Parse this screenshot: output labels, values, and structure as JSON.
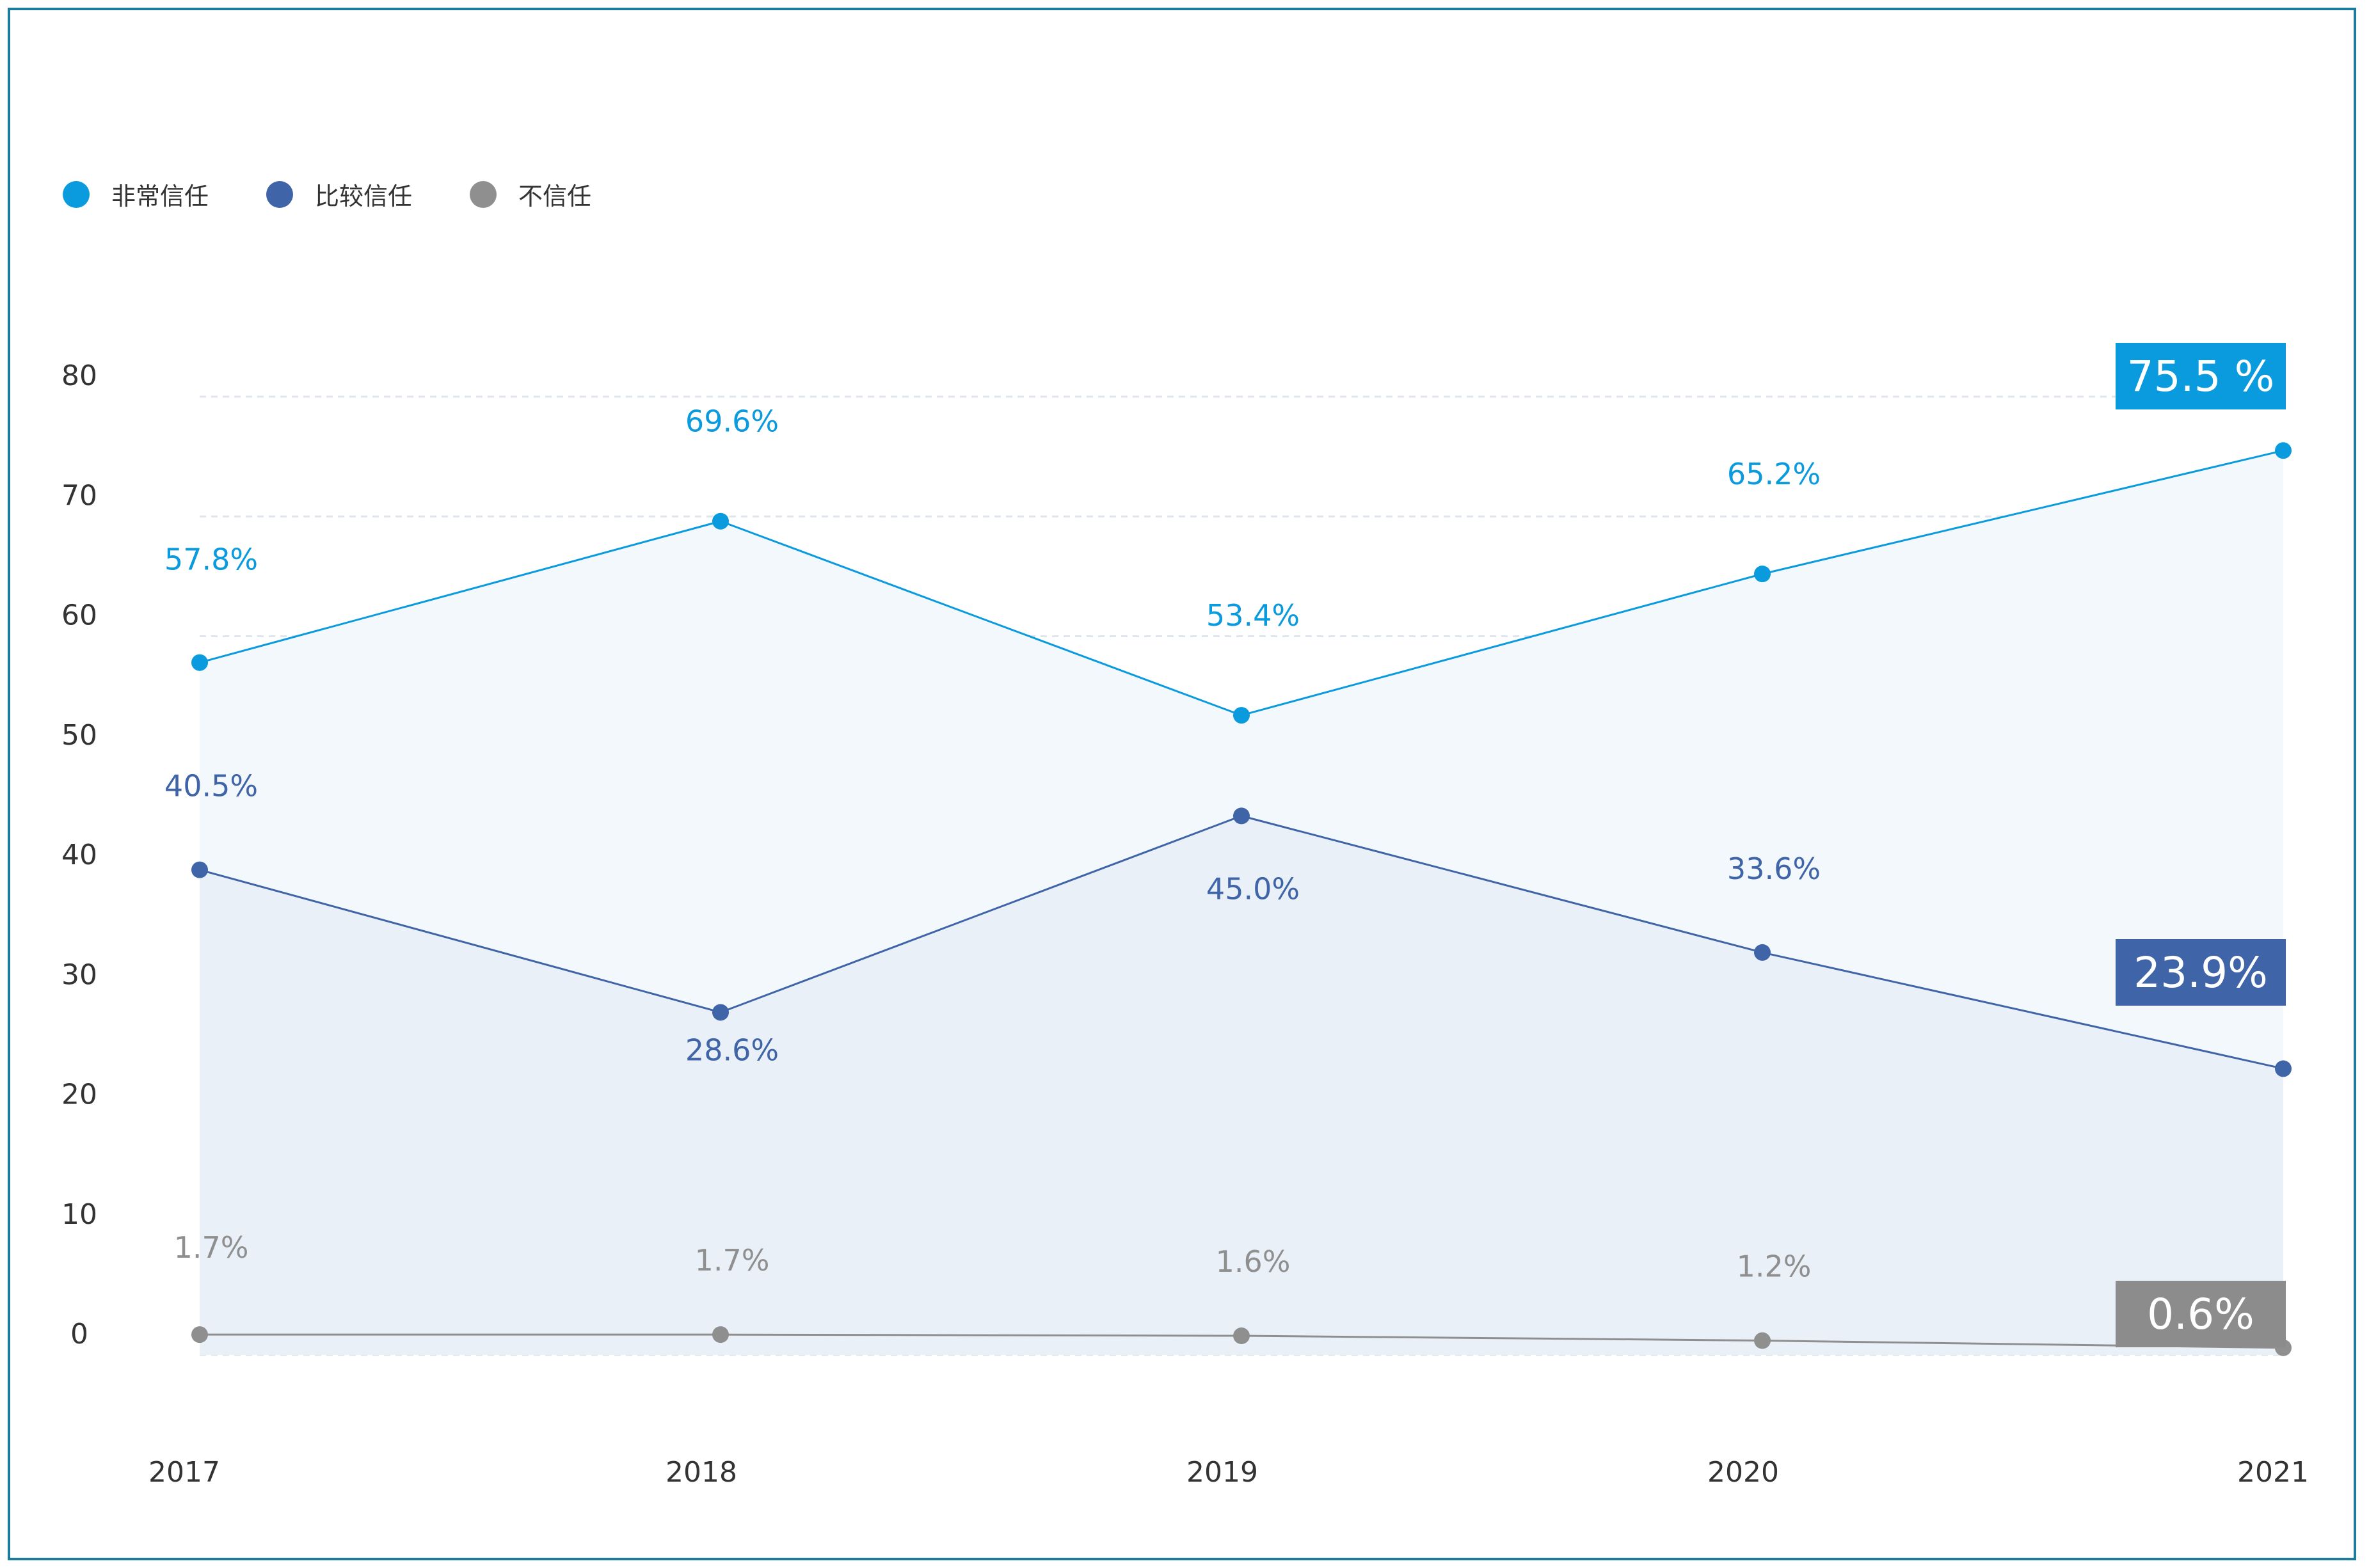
{
  "chart_data": {
    "type": "line",
    "categories": [
      "2017",
      "2018",
      "2019",
      "2020",
      "2021"
    ],
    "ylim": [
      0,
      80
    ],
    "yticks": [
      0,
      10,
      20,
      30,
      40,
      50,
      60,
      70,
      80
    ],
    "grid": true,
    "legend_position": "top-left",
    "series": [
      {
        "name": "非常信任",
        "color": "#0a9ade",
        "values": [
          57.8,
          69.6,
          53.4,
          65.2,
          75.5
        ],
        "labels": [
          "57.8%",
          "69.6%",
          "53.4%",
          "65.2%",
          ""
        ],
        "fill": "#f3f8fc"
      },
      {
        "name": "比较信任",
        "color": "#3f64a8",
        "values": [
          40.5,
          28.6,
          45.0,
          33.6,
          23.9
        ],
        "labels": [
          "40.5%",
          "28.6%",
          "45.0%",
          "33.6%",
          ""
        ],
        "fill": "#eaf0f8"
      },
      {
        "name": "不信任",
        "color": "#8f8f8f",
        "values": [
          1.7,
          1.7,
          1.6,
          1.2,
          0.6
        ],
        "labels": [
          "1.7%",
          "1.7%",
          "1.6%",
          "1.2%",
          ""
        ],
        "fill": "none"
      }
    ],
    "end_badges": [
      "75.5 %",
      "23.9%",
      "0.6%"
    ]
  }
}
